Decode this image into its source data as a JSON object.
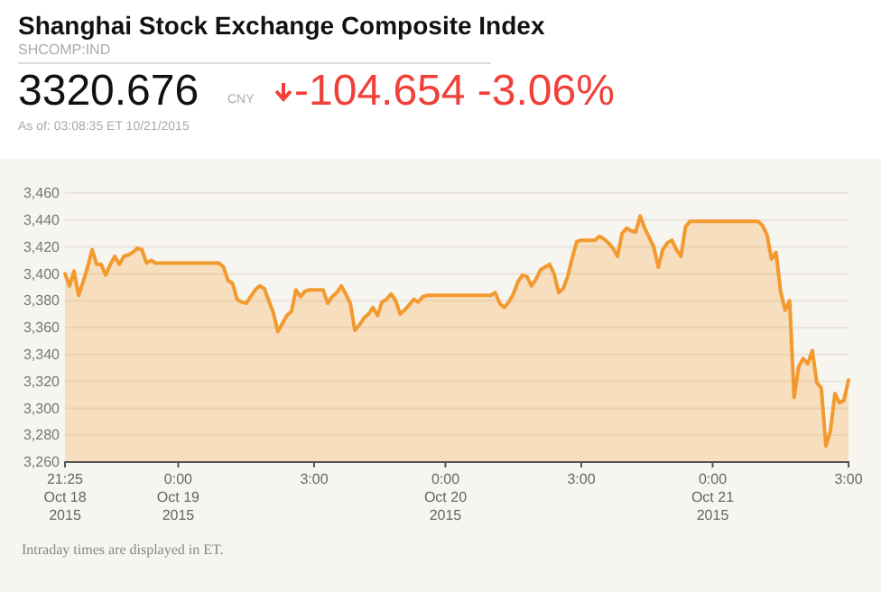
{
  "chart_data": {
    "type": "area",
    "title": "Shanghai Stock Exchange Composite Index",
    "subtitle": "SHCOMP:IND",
    "annotations": [
      "3320.676",
      "CNY",
      "-104.654",
      "-3.06%",
      "As of: 03:08:35 ET 10/21/2015",
      "Intraday times are displayed in ET."
    ],
    "categories": [
      "21:25\nOct 18\n2015",
      null,
      null,
      null,
      null,
      null,
      null,
      null,
      null,
      null,
      null,
      null,
      null,
      null,
      null,
      null,
      null,
      null,
      null,
      null,
      null,
      null,
      null,
      null,
      null,
      "0:00\nOct 19\n2015",
      null,
      null,
      null,
      null,
      null,
      null,
      null,
      null,
      null,
      null,
      null,
      null,
      null,
      null,
      null,
      null,
      null,
      null,
      null,
      null,
      null,
      null,
      null,
      null,
      null,
      null,
      null,
      null,
      null,
      "3:00",
      null,
      null,
      null,
      null,
      null,
      null,
      null,
      null,
      null,
      null,
      null,
      null,
      null,
      null,
      null,
      null,
      null,
      null,
      null,
      null,
      null,
      null,
      null,
      null,
      null,
      null,
      null,
      null,
      "0:00\nOct 20\n2015",
      null,
      null,
      null,
      null,
      null,
      null,
      null,
      null,
      null,
      null,
      null,
      null,
      null,
      null,
      null,
      null,
      null,
      null,
      null,
      null,
      null,
      null,
      null,
      null,
      null,
      null,
      null,
      null,
      null,
      "3:00",
      null,
      null,
      null,
      null,
      null,
      null,
      null,
      null,
      null,
      null,
      null,
      null,
      null,
      null,
      null,
      null,
      null,
      null,
      null,
      null,
      null,
      null,
      null,
      null,
      null,
      null,
      null,
      null,
      "0:00\nOct 21\n2015",
      null,
      null,
      null,
      null,
      null,
      null,
      null,
      null,
      null,
      null,
      null,
      null,
      null,
      null,
      null,
      null,
      null,
      null,
      null,
      null,
      null,
      null,
      null,
      null,
      null,
      null,
      null,
      null,
      null,
      "3:00"
    ],
    "series": [
      {
        "color": "#f39a2f",
        "values": [
          3400,
          3391,
          3402,
          3384,
          3394,
          3405,
          3418,
          3407,
          3407,
          3399,
          3407,
          3413,
          3407,
          3413,
          3414,
          3416,
          3419,
          3418,
          3408,
          3410,
          3408,
          3408,
          3408,
          3408,
          3408,
          3408,
          3408,
          3408,
          3408,
          3408,
          3408,
          3408,
          3408,
          3408,
          3408,
          3405,
          3395,
          3393,
          3381,
          3379,
          3378,
          3383,
          3388,
          3391,
          3389,
          3380,
          3371,
          3357,
          3363,
          3369,
          3372,
          3388,
          3383,
          3387,
          3388,
          3388,
          3388,
          3388,
          3378,
          3383,
          3386,
          3391,
          3385,
          3378,
          3358,
          3362,
          3367,
          3370,
          3375,
          3369,
          3379,
          3381,
          3385,
          3380,
          3370,
          3373,
          3377,
          3381,
          3379,
          3383,
          3384,
          3384,
          3384,
          3384,
          3384,
          3384,
          3384,
          3384,
          3384,
          3384,
          3384,
          3384,
          3384,
          3384,
          3384,
          3386,
          3378,
          3375,
          3379,
          3385,
          3394,
          3399,
          3398,
          3391,
          3396,
          3403,
          3405,
          3407,
          3400,
          3386,
          3389,
          3398,
          3412,
          3424,
          3425,
          3425,
          3425,
          3425,
          3428,
          3426,
          3423,
          3419,
          3413,
          3430,
          3434,
          3432,
          3431,
          3443,
          3434,
          3427,
          3420,
          3405,
          3418,
          3423,
          3425,
          3418,
          3413,
          3435,
          3439,
          3439,
          3439,
          3439,
          3439,
          3439,
          3439,
          3439,
          3439,
          3439,
          3439,
          3439,
          3439,
          3439,
          3439,
          3439,
          3436,
          3429,
          3411,
          3416,
          3387,
          3373,
          3380,
          3308,
          3331,
          3337,
          3333,
          3343,
          3319,
          3315,
          3272,
          3283,
          3311,
          3304,
          3306,
          3321
        ]
      }
    ],
    "ylim": [
      3260,
      3460
    ],
    "yticks": [
      {
        "value": 3260,
        "label": "3,260"
      },
      {
        "value": 3280,
        "label": "3,280"
      },
      {
        "value": 3300,
        "label": "3,300"
      },
      {
        "value": 3320,
        "label": "3,320"
      },
      {
        "value": 3340,
        "label": "3,340"
      },
      {
        "value": 3360,
        "label": "3,360"
      },
      {
        "value": 3380,
        "label": "3,380"
      },
      {
        "value": 3400,
        "label": "3,400"
      },
      {
        "value": 3420,
        "label": "3,420"
      },
      {
        "value": 3440,
        "label": "3,440"
      },
      {
        "value": 3460,
        "label": "3,460"
      }
    ],
    "grid": "y",
    "marker": "none",
    "line_style": "solid"
  }
}
